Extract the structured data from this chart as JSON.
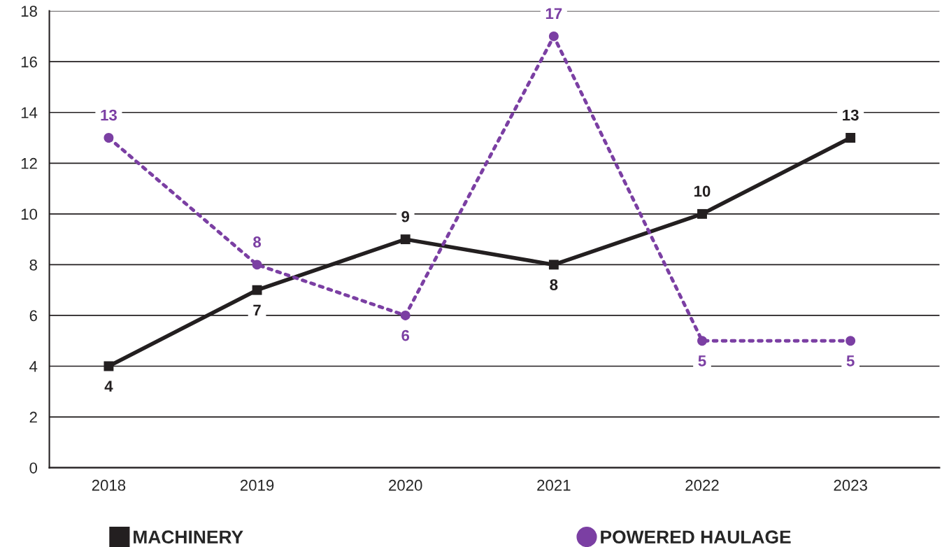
{
  "chart_data": {
    "type": "line",
    "categories": [
      "2018",
      "2019",
      "2020",
      "2021",
      "2022",
      "2023"
    ],
    "series": [
      {
        "name": "MACHINERY",
        "color": "#231f20",
        "values": [
          4,
          7,
          9,
          8,
          10,
          13
        ],
        "marker": "square",
        "line_style": "solid"
      },
      {
        "name": "POWERED HAULAGE",
        "color": "#7b3fa3",
        "values": [
          13,
          8,
          6,
          17,
          5,
          5
        ],
        "marker": "circle",
        "line_style": "dotted"
      }
    ],
    "ylim": [
      0,
      18
    ],
    "yticks": [
      0,
      2,
      4,
      6,
      8,
      10,
      12,
      14,
      16,
      18
    ],
    "grid": "y",
    "legend": "bottom",
    "data_labels": true
  }
}
